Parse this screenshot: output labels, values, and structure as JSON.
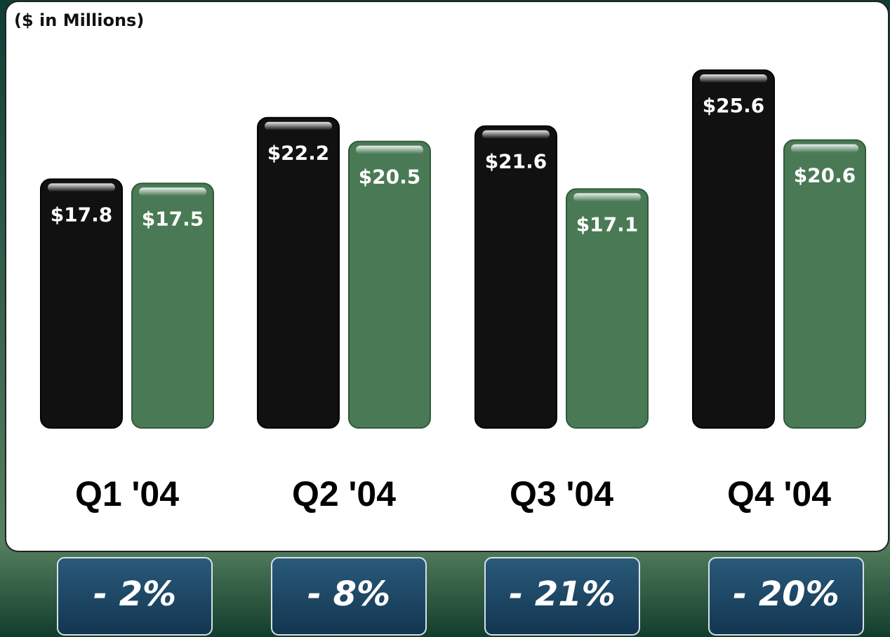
{
  "chart_data": {
    "type": "bar",
    "title": "($ in Millions)",
    "categories": [
      "Q1 '04",
      "Q2 '04",
      "Q3 '04",
      "Q4 '04"
    ],
    "series": [
      {
        "color": "#111111",
        "values": [
          17.8,
          22.2,
          21.6,
          25.6
        ],
        "value_labels": [
          "$17.8",
          "$22.2",
          "$21.6",
          "$25.6"
        ]
      },
      {
        "color": "#4a7a55",
        "values": [
          17.5,
          20.5,
          17.1,
          20.6
        ],
        "value_labels": [
          "$17.5",
          "$20.5",
          "$17.1",
          "$20.6"
        ]
      }
    ],
    "annotations": [
      "- 2%",
      "- 8%",
      "- 21%",
      "- 20%"
    ]
  }
}
